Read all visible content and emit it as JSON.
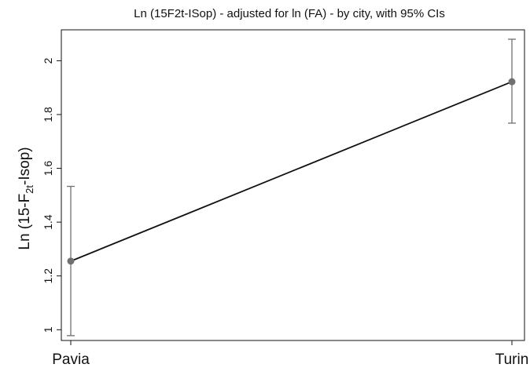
{
  "chart_data": {
    "type": "line",
    "title": "Ln (15F2t-ISop) - adjusted for ln (FA) - by city, with 95% CIs",
    "xlabel": "",
    "ylabel": {
      "prefix": "Ln (15-F",
      "subscript": "2t",
      "suffix": "-Isop)"
    },
    "categories": [
      "Pavia",
      "Turin"
    ],
    "series": [
      {
        "values": [
          1.255,
          1.922
        ],
        "ci_lower": [
          0.978,
          1.768
        ],
        "ci_upper": [
          1.533,
          2.08
        ]
      }
    ],
    "ylim": [
      0.96,
      2.115
    ],
    "yticks": [
      1,
      1.2,
      1.4,
      1.6,
      1.8,
      2
    ],
    "ytick_labels": [
      "1",
      "1.2",
      "1.4",
      "1.6",
      "1.8",
      "2"
    ],
    "grid": false,
    "legend": "none",
    "colors": {
      "line": "#111111",
      "marker": "#707070",
      "ci": "#707070",
      "axis": "#111111"
    }
  }
}
